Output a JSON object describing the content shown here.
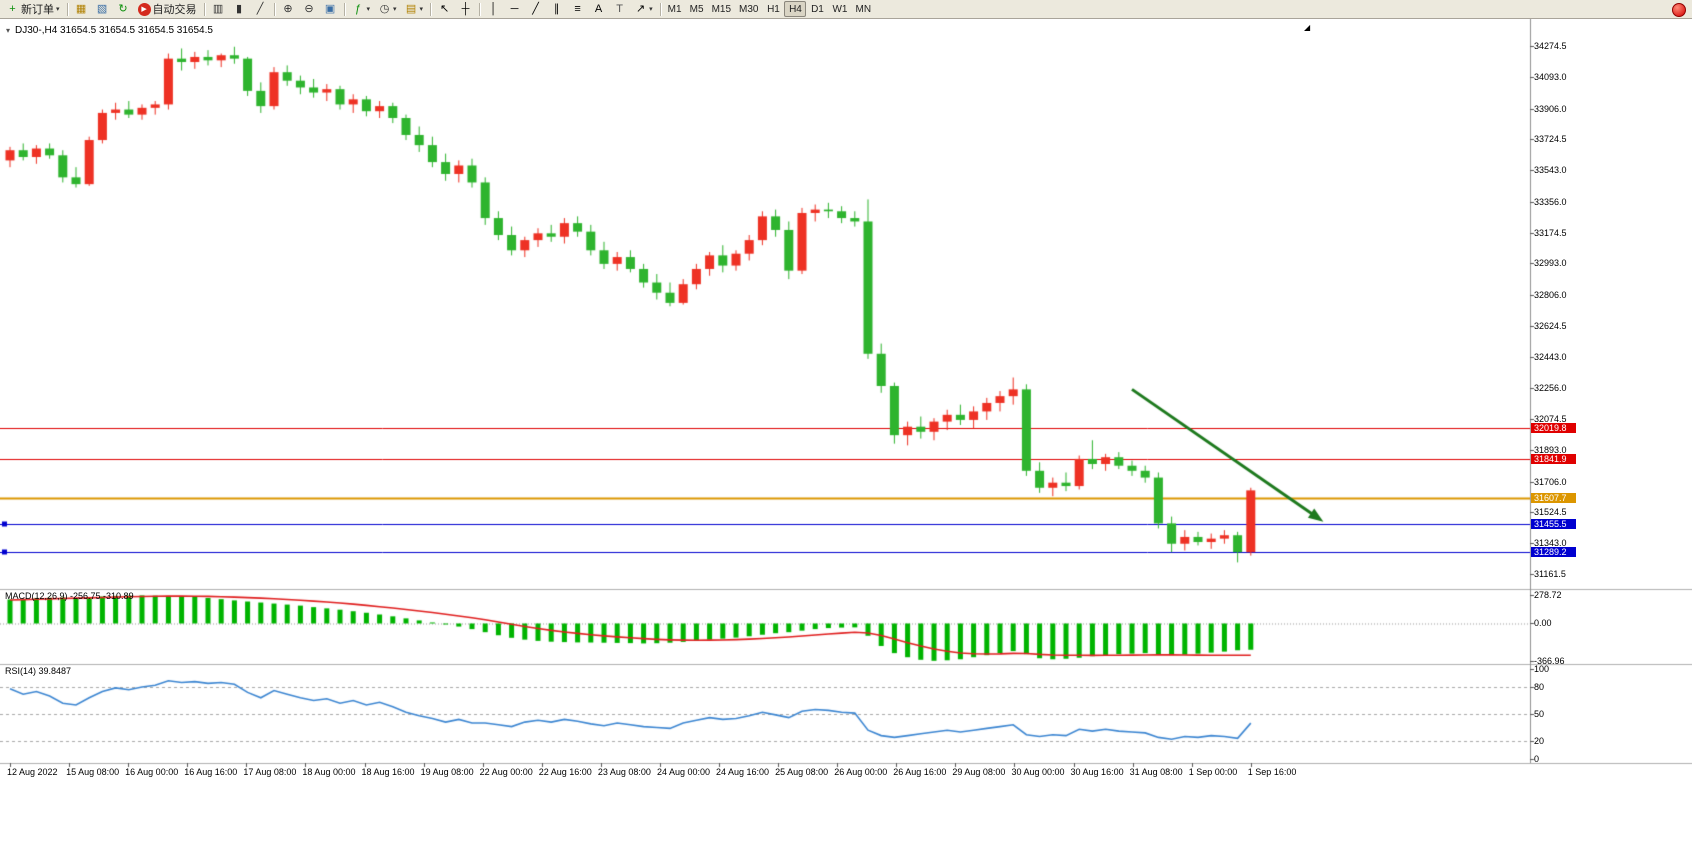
{
  "toolbar": {
    "caret_glyph": "▾",
    "buttons": [
      {
        "button": "new-order-button",
        "icon": "new-order-icon",
        "glyph": "+",
        "icon_color": "#0a8f0a",
        "label": "新订单",
        "caret": true
      },
      {
        "sep": true
      },
      {
        "button": "new-chart-button",
        "icon": "new-chart-icon",
        "glyph": "▦",
        "icon_color": "#b08000"
      },
      {
        "button": "profiles-button",
        "icon": "profiles-icon",
        "glyph": "▧",
        "icon_color": "#3a6ea5"
      },
      {
        "button": "refresh-button",
        "icon": "refresh-icon",
        "glyph": "↻",
        "icon_color": "#0a8f0a"
      },
      {
        "button": "autotrading-button",
        "icon": "autotrading-icon",
        "glyph": "▶",
        "icon_color": "#ffffff",
        "icon_bg": "#d42a1e",
        "label": "自动交易"
      },
      {
        "sep": true
      },
      {
        "button": "bar-chart-button",
        "icon": "bar-chart-icon",
        "glyph": "▥",
        "icon_color": "#333333"
      },
      {
        "button": "candlestick-chart-button",
        "icon": "candlestick-chart-icon",
        "glyph": "▮",
        "icon_color": "#333333"
      },
      {
        "button": "line-chart-button",
        "icon": "line-chart-icon",
        "glyph": "╱",
        "icon_color": "#333333"
      },
      {
        "sep": true
      },
      {
        "button": "zoom-in-button",
        "icon": "zoom-in-icon",
        "glyph": "⊕",
        "icon_color": "#333333"
      },
      {
        "button": "zoom-out-button",
        "icon": "zoom-out-icon",
        "glyph": "⊖",
        "icon_color": "#333333"
      },
      {
        "button": "tile-windows-button",
        "icon": "tile-windows-icon",
        "glyph": "▣",
        "icon_color": "#3a6ea5"
      },
      {
        "sep": true
      },
      {
        "button": "indicators-button",
        "icon": "indicators-icon",
        "glyph": "ƒ",
        "icon_color": "#0a8f0a",
        "caret": true
      },
      {
        "button": "periods-button",
        "icon": "periods-icon",
        "glyph": "◷",
        "icon_color": "#333333",
        "caret": true
      },
      {
        "button": "templates-button",
        "icon": "templates-icon",
        "glyph": "▤",
        "icon_color": "#b08000",
        "caret": true
      },
      {
        "sep": true
      },
      {
        "button": "cursor-button",
        "icon": "cursor-icon",
        "glyph": "↖",
        "icon_color": "#000000"
      },
      {
        "button": "crosshair-button",
        "icon": "crosshair-icon",
        "glyph": "┼",
        "icon_color": "#000000"
      },
      {
        "sep": true
      },
      {
        "button": "vertical-line-button",
        "icon": "vertical-line-icon",
        "glyph": "│",
        "icon_color": "#000000"
      },
      {
        "button": "horizontal-line-button",
        "icon": "horizontal-line-icon",
        "glyph": "─",
        "icon_color": "#000000"
      },
      {
        "button": "trendline-button",
        "icon": "trendline-icon",
        "glyph": "╱",
        "icon_color": "#000000"
      },
      {
        "button": "channel-button",
        "icon": "channel-icon",
        "glyph": "∥",
        "icon_color": "#000000"
      },
      {
        "button": "fibonacci-button",
        "icon": "fibonacci-icon",
        "glyph": "≡",
        "icon_color": "#000000"
      },
      {
        "button": "text-button",
        "icon": "text-icon",
        "glyph": "A",
        "icon_color": "#000000"
      },
      {
        "button": "label-button",
        "icon": "label-icon",
        "glyph": "T",
        "icon_color": "#555555"
      },
      {
        "button": "arrows-button",
        "icon": "arrows-icon",
        "glyph": "↗",
        "icon_color": "#000000",
        "caret": true
      },
      {
        "sep": true
      }
    ],
    "timeframes": [
      "M1",
      "M5",
      "M15",
      "M30",
      "H1",
      "H4",
      "D1",
      "W1",
      "MN"
    ],
    "active_timeframe": "H4"
  },
  "chart": {
    "title": "DJ30-,H4 31654.5 31654.5 31654.5 31654.5",
    "symbol": "DJ30-",
    "period": "H4",
    "open": 31654.5,
    "high": 31654.5,
    "low": 31654.5,
    "close": 31654.5,
    "collapse_icon": "▾",
    "shift_marker_icon": "◢"
  },
  "chart_data": {
    "type": "candlestick",
    "symbol": "DJ30-",
    "timeframe": "H4",
    "up_color": "#ee3124",
    "down_color": "#2eb42e",
    "price_axis": [
      34274.5,
      34093.0,
      33906.0,
      33724.5,
      33543.0,
      33356.0,
      33174.5,
      32993.0,
      32806.0,
      32624.5,
      32443.0,
      32256.0,
      32074.5,
      31893.0,
      31706.0,
      31524.5,
      31343.0,
      31161.5
    ],
    "time_labels": [
      "12 Aug 2022",
      "15 Aug 08:00",
      "16 Aug 00:00",
      "16 Aug 16:00",
      "17 Aug 08:00",
      "18 Aug 00:00",
      "18 Aug 16:00",
      "19 Aug 08:00",
      "22 Aug 00:00",
      "22 Aug 16:00",
      "23 Aug 08:00",
      "24 Aug 00:00",
      "24 Aug 16:00",
      "25 Aug 08:00",
      "26 Aug 00:00",
      "26 Aug 16:00",
      "29 Aug 08:00",
      "30 Aug 00:00",
      "30 Aug 16:00",
      "31 Aug 08:00",
      "1 Sep 00:00",
      "1 Sep 16:00"
    ],
    "ohlc": [
      [
        33600,
        33680,
        33560,
        33660
      ],
      [
        33660,
        33700,
        33600,
        33620
      ],
      [
        33620,
        33690,
        33580,
        33670
      ],
      [
        33670,
        33700,
        33610,
        33630
      ],
      [
        33630,
        33660,
        33470,
        33500
      ],
      [
        33500,
        33560,
        33440,
        33460
      ],
      [
        33460,
        33740,
        33450,
        33720
      ],
      [
        33720,
        33900,
        33700,
        33880
      ],
      [
        33880,
        33940,
        33840,
        33900
      ],
      [
        33900,
        33950,
        33850,
        33870
      ],
      [
        33870,
        33930,
        33840,
        33910
      ],
      [
        33910,
        33950,
        33870,
        33930
      ],
      [
        33930,
        34230,
        33900,
        34200
      ],
      [
        34200,
        34260,
        34130,
        34180
      ],
      [
        34180,
        34240,
        34140,
        34210
      ],
      [
        34210,
        34250,
        34160,
        34190
      ],
      [
        34190,
        34230,
        34150,
        34220
      ],
      [
        34220,
        34270,
        34170,
        34200
      ],
      [
        34200,
        34210,
        33980,
        34010
      ],
      [
        34010,
        34060,
        33880,
        33920
      ],
      [
        33920,
        34150,
        33900,
        34120
      ],
      [
        34120,
        34160,
        34040,
        34070
      ],
      [
        34070,
        34100,
        33990,
        34030
      ],
      [
        34030,
        34080,
        33970,
        34000
      ],
      [
        34000,
        34050,
        33950,
        34020
      ],
      [
        34020,
        34040,
        33900,
        33930
      ],
      [
        33930,
        33990,
        33880,
        33960
      ],
      [
        33960,
        33980,
        33860,
        33890
      ],
      [
        33890,
        33950,
        33850,
        33920
      ],
      [
        33920,
        33940,
        33820,
        33850
      ],
      [
        33850,
        33870,
        33720,
        33750
      ],
      [
        33750,
        33800,
        33650,
        33690
      ],
      [
        33690,
        33740,
        33560,
        33590
      ],
      [
        33590,
        33640,
        33480,
        33520
      ],
      [
        33520,
        33600,
        33470,
        33570
      ],
      [
        33570,
        33610,
        33440,
        33470
      ],
      [
        33470,
        33500,
        33220,
        33260
      ],
      [
        33260,
        33300,
        33130,
        33160
      ],
      [
        33160,
        33210,
        33040,
        33070
      ],
      [
        33070,
        33150,
        33030,
        33130
      ],
      [
        33130,
        33200,
        33090,
        33170
      ],
      [
        33170,
        33220,
        33120,
        33150
      ],
      [
        33150,
        33260,
        33110,
        33230
      ],
      [
        33230,
        33270,
        33150,
        33180
      ],
      [
        33180,
        33220,
        33040,
        33070
      ],
      [
        33070,
        33120,
        32960,
        32990
      ],
      [
        32990,
        33060,
        32950,
        33030
      ],
      [
        33030,
        33070,
        32940,
        32960
      ],
      [
        32960,
        32990,
        32850,
        32880
      ],
      [
        32880,
        32930,
        32780,
        32820
      ],
      [
        32820,
        32880,
        32740,
        32760
      ],
      [
        32760,
        32900,
        32750,
        32870
      ],
      [
        32870,
        32990,
        32840,
        32960
      ],
      [
        32960,
        33060,
        32920,
        33040
      ],
      [
        33040,
        33100,
        32940,
        32980
      ],
      [
        32980,
        33070,
        32950,
        33050
      ],
      [
        33050,
        33160,
        33010,
        33130
      ],
      [
        33130,
        33300,
        33100,
        33270
      ],
      [
        33270,
        33310,
        33150,
        33190
      ],
      [
        33190,
        33240,
        32900,
        32950
      ],
      [
        32950,
        33320,
        32930,
        33290
      ],
      [
        33290,
        33340,
        33240,
        33310
      ],
      [
        33310,
        33350,
        33260,
        33300
      ],
      [
        33300,
        33330,
        33230,
        33260
      ],
      [
        33260,
        33300,
        33210,
        33240
      ],
      [
        33240,
        33370,
        32430,
        32460
      ],
      [
        32460,
        32520,
        32230,
        32270
      ],
      [
        32270,
        32290,
        31930,
        31980
      ],
      [
        31980,
        32060,
        31920,
        32030
      ],
      [
        32030,
        32090,
        31960,
        32000
      ],
      [
        32000,
        32080,
        31950,
        32060
      ],
      [
        32060,
        32130,
        32010,
        32100
      ],
      [
        32100,
        32160,
        32040,
        32070
      ],
      [
        32070,
        32150,
        32020,
        32120
      ],
      [
        32120,
        32200,
        32070,
        32170
      ],
      [
        32170,
        32240,
        32120,
        32210
      ],
      [
        32210,
        32320,
        32160,
        32250
      ],
      [
        32250,
        32280,
        31740,
        31770
      ],
      [
        31770,
        31820,
        31640,
        31670
      ],
      [
        31670,
        31730,
        31620,
        31700
      ],
      [
        31700,
        31760,
        31650,
        31680
      ],
      [
        31680,
        31860,
        31660,
        31840
      ],
      [
        31840,
        31950,
        31780,
        31810
      ],
      [
        31810,
        31870,
        31770,
        31850
      ],
      [
        31850,
        31880,
        31780,
        31800
      ],
      [
        31800,
        31830,
        31740,
        31770
      ],
      [
        31770,
        31800,
        31700,
        31730
      ],
      [
        31730,
        31760,
        31430,
        31460
      ],
      [
        31460,
        31500,
        31290,
        31340
      ],
      [
        31340,
        31420,
        31300,
        31380
      ],
      [
        31380,
        31410,
        31330,
        31350
      ],
      [
        31350,
        31400,
        31310,
        31370
      ],
      [
        31370,
        31420,
        31340,
        31390
      ],
      [
        31390,
        31410,
        31230,
        31290
      ],
      [
        31290,
        31670,
        31270,
        31654.5
      ]
    ],
    "hlines": [
      {
        "price": 32019.8,
        "color": "#e00000",
        "width": 1
      },
      {
        "price": 31841.9,
        "color": "#e00000",
        "width": 1
      },
      {
        "price": 31607.7,
        "color": "#dc9600",
        "width": 2
      },
      {
        "price": 31455.5,
        "color": "#0000d0",
        "width": 1,
        "handles": true
      },
      {
        "price": 31289.2,
        "color": "#0000d0",
        "width": 1,
        "handles": true
      }
    ],
    "trend_arrow": {
      "from_bar": 85,
      "from_price": 32250,
      "to_bar": 99.5,
      "to_price": 31470,
      "color": "#1e7a1e"
    },
    "indicators": {
      "macd": {
        "label": "MACD(12,26,9) -256.75 -310.89",
        "name": "MACD",
        "params": [
          12,
          26,
          9
        ],
        "main_value": -256.75,
        "signal_value": -310.89,
        "axis": [
          278.72,
          0,
          -366.96
        ],
        "histogram_color": "#00b400",
        "signal_color": "#e01f1f",
        "histogram": [
          235,
          240,
          248,
          252,
          255,
          250,
          258,
          264,
          270,
          273,
          275,
          272,
          270,
          268,
          260,
          250,
          238,
          226,
          215,
          205,
          195,
          185,
          175,
          160,
          148,
          135,
          120,
          105,
          88,
          70,
          50,
          30,
          10,
          -10,
          -30,
          -55,
          -85,
          -115,
          -140,
          -158,
          -170,
          -178,
          -182,
          -185,
          -186,
          -188,
          -190,
          -192,
          -195,
          -193,
          -188,
          -180,
          -170,
          -158,
          -148,
          -138,
          -125,
          -110,
          -95,
          -85,
          -70,
          -55,
          -45,
          -40,
          -38,
          -120,
          -220,
          -290,
          -330,
          -355,
          -365,
          -360,
          -350,
          -330,
          -310,
          -290,
          -270,
          -300,
          -340,
          -350,
          -345,
          -335,
          -320,
          -310,
          -300,
          -295,
          -290,
          -300,
          -310,
          -305,
          -295,
          -285,
          -275,
          -262,
          -256.75
        ],
        "signal": [
          230,
          233,
          237,
          241,
          245,
          248,
          251,
          254,
          258,
          261,
          264,
          266,
          268,
          268,
          267,
          265,
          262,
          258,
          253,
          248,
          242,
          235,
          228,
          219,
          210,
          200,
          189,
          177,
          164,
          151,
          137,
          122,
          107,
          91,
          74,
          56,
          36,
          15,
          -7,
          -29,
          -49,
          -67,
          -83,
          -97,
          -110,
          -121,
          -131,
          -140,
          -148,
          -155,
          -160,
          -163,
          -164,
          -163,
          -161,
          -158,
          -153,
          -147,
          -140,
          -132,
          -123,
          -113,
          -103,
          -94,
          -86,
          -93,
          -118,
          -152,
          -188,
          -221,
          -250,
          -272,
          -288,
          -296,
          -299,
          -297,
          -292,
          -293,
          -302,
          -308,
          -310,
          -311,
          -312,
          -311,
          -310,
          -309,
          -308,
          -307,
          -307,
          -308,
          -309,
          -310,
          -310,
          -310,
          -310.89
        ]
      },
      "rsi": {
        "label": "RSI(14) 39.8487",
        "name": "RSI",
        "params": [
          14
        ],
        "value": 39.8487,
        "levels": [
          80,
          50,
          20
        ],
        "axis": [
          100,
          80,
          50,
          20,
          0
        ],
        "line_color": "#3c86d2",
        "values": [
          78,
          72,
          75,
          70,
          62,
          60,
          68,
          75,
          79,
          77,
          80,
          82,
          87,
          85,
          86,
          84,
          85,
          83,
          74,
          68,
          76,
          72,
          68,
          65,
          67,
          62,
          65,
          60,
          63,
          58,
          52,
          48,
          45,
          41,
          44,
          40,
          40,
          38,
          36,
          41,
          43,
          41,
          44,
          42,
          39,
          37,
          40,
          38,
          36,
          35,
          34,
          40,
          43,
          46,
          44,
          45,
          48,
          52,
          49,
          46,
          53,
          55,
          54,
          52,
          51,
          32,
          26,
          24,
          26,
          28,
          30,
          32,
          30,
          32,
          34,
          36,
          38,
          27,
          25,
          27,
          26,
          33,
          31,
          33,
          31,
          30,
          29,
          24,
          22,
          25,
          24,
          26,
          25,
          23,
          39.8487
        ]
      }
    }
  }
}
